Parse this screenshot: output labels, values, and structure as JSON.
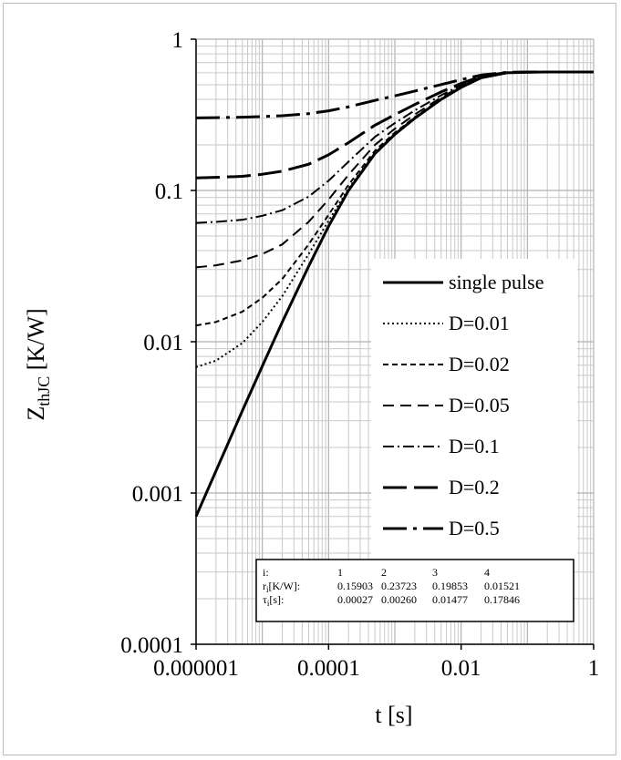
{
  "chart_data": {
    "type": "line",
    "title": "",
    "x_scale": "log",
    "y_scale": "log",
    "xlim": [
      1e-06,
      1
    ],
    "ylim": [
      0.0001,
      1
    ],
    "grid": true,
    "x_ticks": [
      "0.000001",
      "0.0001",
      "0.01",
      "1"
    ],
    "y_ticks": [
      "0.0001",
      "0.001",
      "0.01",
      "0.1",
      "1"
    ],
    "xlabel_main": "t [s]",
    "ylabel_main": "Z",
    "ylabel_sub": "thJC",
    "ylabel_unit": " [K/W]",
    "legend_position": "right",
    "series": [
      {
        "name": "single pulse",
        "dash": "",
        "width": 3,
        "x": [
          1e-06,
          2e-06,
          5e-06,
          1e-05,
          2e-05,
          5e-05,
          0.0001,
          0.0002,
          0.0005,
          0.001,
          0.002,
          0.005,
          0.01,
          0.02,
          0.05,
          0.1,
          0.2,
          0.5,
          1
        ],
        "y": [
          0.0007,
          0.0014,
          0.0035,
          0.0069,
          0.0135,
          0.0315,
          0.058,
          0.1,
          0.175,
          0.235,
          0.3,
          0.4,
          0.48,
          0.555,
          0.6,
          0.605,
          0.607,
          0.607,
          0.607
        ]
      },
      {
        "name": "D=0.01",
        "dash": "2,3",
        "width": 2,
        "x": [
          1e-06,
          2e-06,
          5e-06,
          1e-05,
          2e-05,
          5e-05,
          0.0001,
          0.0002,
          0.0005,
          0.001,
          0.002,
          0.005,
          0.01,
          0.02,
          0.05,
          0.1,
          0.2,
          0.5,
          1
        ],
        "y": [
          0.0068,
          0.0075,
          0.0098,
          0.0135,
          0.02,
          0.038,
          0.063,
          0.103,
          0.178,
          0.237,
          0.302,
          0.401,
          0.481,
          0.556,
          0.6,
          0.605,
          0.607,
          0.607,
          0.607
        ]
      },
      {
        "name": "D=0.02",
        "dash": "6,4",
        "width": 2,
        "x": [
          1e-06,
          2e-06,
          5e-06,
          1e-05,
          2e-05,
          5e-05,
          0.0001,
          0.0002,
          0.0005,
          0.001,
          0.002,
          0.005,
          0.01,
          0.02,
          0.05,
          0.1,
          0.2,
          0.5,
          1
        ],
        "y": [
          0.0128,
          0.0135,
          0.0158,
          0.0195,
          0.026,
          0.044,
          0.069,
          0.109,
          0.183,
          0.241,
          0.305,
          0.403,
          0.482,
          0.556,
          0.6,
          0.605,
          0.607,
          0.607,
          0.607
        ]
      },
      {
        "name": "D=0.05",
        "dash": "12,7",
        "width": 2,
        "x": [
          1e-06,
          2e-06,
          5e-06,
          1e-05,
          2e-05,
          5e-05,
          0.0001,
          0.0002,
          0.0005,
          0.001,
          0.002,
          0.005,
          0.01,
          0.02,
          0.05,
          0.1,
          0.2,
          0.5,
          1
        ],
        "y": [
          0.031,
          0.032,
          0.0345,
          0.038,
          0.044,
          0.062,
          0.087,
          0.127,
          0.2,
          0.256,
          0.318,
          0.412,
          0.487,
          0.558,
          0.601,
          0.605,
          0.607,
          0.607,
          0.607
        ]
      },
      {
        "name": "D=0.1",
        "dash": "12,4,2,4",
        "width": 2,
        "x": [
          1e-06,
          2e-06,
          5e-06,
          1e-05,
          2e-05,
          5e-05,
          0.0001,
          0.0002,
          0.0005,
          0.001,
          0.002,
          0.005,
          0.01,
          0.02,
          0.05,
          0.1,
          0.2,
          0.5,
          1
        ],
        "y": [
          0.061,
          0.062,
          0.064,
          0.068,
          0.074,
          0.091,
          0.116,
          0.155,
          0.226,
          0.279,
          0.338,
          0.426,
          0.496,
          0.562,
          0.602,
          0.606,
          0.607,
          0.607,
          0.607
        ]
      },
      {
        "name": "D=0.2",
        "dash": "26,8",
        "width": 3,
        "x": [
          1e-06,
          2e-06,
          5e-06,
          1e-05,
          2e-05,
          5e-05,
          0.0001,
          0.0002,
          0.0005,
          0.001,
          0.002,
          0.005,
          0.01,
          0.02,
          0.05,
          0.1,
          0.2,
          0.5,
          1
        ],
        "y": [
          0.121,
          0.122,
          0.124,
          0.128,
          0.134,
          0.149,
          0.172,
          0.207,
          0.27,
          0.317,
          0.37,
          0.448,
          0.51,
          0.568,
          0.603,
          0.606,
          0.607,
          0.607,
          0.607
        ]
      },
      {
        "name": "D=0.5",
        "dash": "26,7,4,7",
        "width": 3,
        "x": [
          1e-06,
          2e-06,
          5e-06,
          1e-05,
          2e-05,
          5e-05,
          0.0001,
          0.0002,
          0.0005,
          0.001,
          0.002,
          0.005,
          0.01,
          0.02,
          0.05,
          0.1,
          0.2,
          0.5,
          1
        ],
        "y": [
          0.302,
          0.303,
          0.305,
          0.308,
          0.312,
          0.322,
          0.336,
          0.357,
          0.394,
          0.422,
          0.454,
          0.501,
          0.54,
          0.579,
          0.604,
          0.606,
          0.607,
          0.607,
          0.607
        ]
      }
    ],
    "rc_table": {
      "rows": [
        {
          "label": "i:",
          "values": [
            "1",
            "2",
            "3",
            "4"
          ]
        },
        {
          "label": "r",
          "label_sub": "i",
          "label_rest": "[K/W]:",
          "values": [
            "0.15903",
            "0.23723",
            "0.19853",
            "0.01521"
          ]
        },
        {
          "label": "τ",
          "label_sub": "i",
          "label_rest": "[s]:",
          "values": [
            "0.00027",
            "0.00260",
            "0.01477",
            "0.17846"
          ]
        }
      ]
    }
  }
}
